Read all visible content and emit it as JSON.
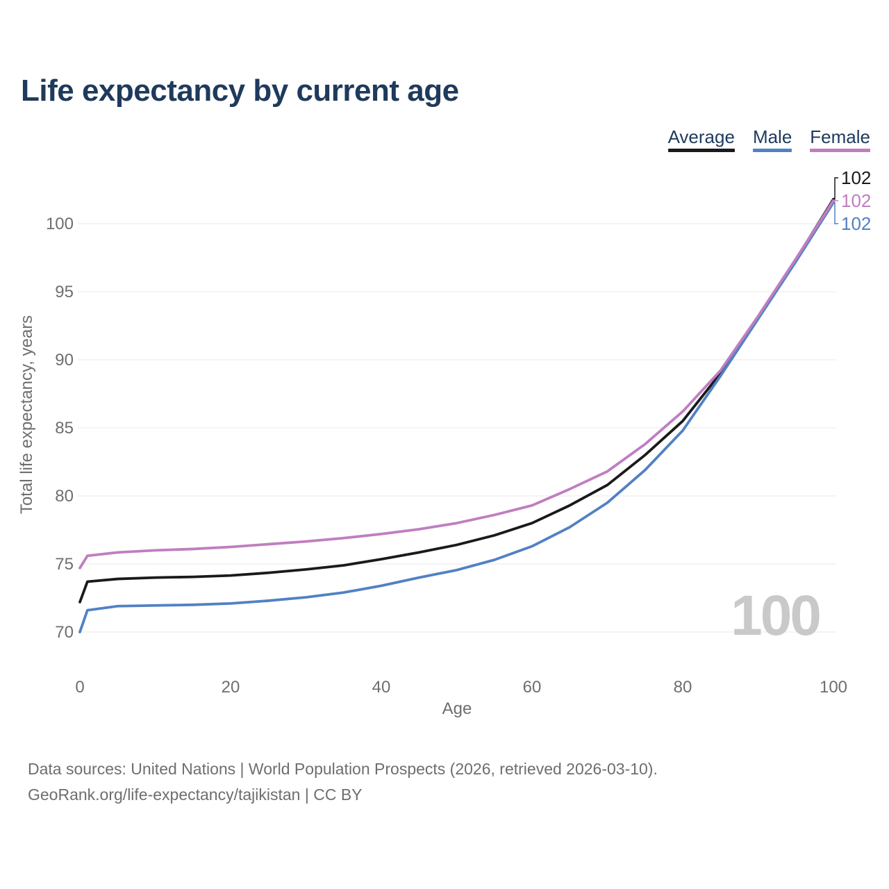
{
  "title": "Life expectancy by current age",
  "legend": {
    "items": [
      {
        "label": "Average",
        "color": "#1a1a1a"
      },
      {
        "label": "Male",
        "color": "#5181c4"
      },
      {
        "label": "Female",
        "color": "#bf7ec0"
      }
    ]
  },
  "watermark": "100",
  "chart_data": {
    "type": "line",
    "title": "Life expectancy by current age",
    "xlabel": "Age",
    "ylabel": "Total life expectancy, years",
    "xlim": [
      0,
      100
    ],
    "ylim": [
      70,
      102
    ],
    "x_ticks": [
      0,
      20,
      40,
      60,
      80,
      100
    ],
    "y_ticks": [
      70,
      75,
      80,
      85,
      90,
      95,
      100
    ],
    "grid": "horizontal",
    "legend_position": "top-right",
    "x": [
      0,
      1,
      5,
      10,
      15,
      20,
      25,
      30,
      35,
      40,
      45,
      50,
      55,
      60,
      65,
      70,
      75,
      80,
      85,
      90,
      95,
      100
    ],
    "series": [
      {
        "name": "Average",
        "color": "#1a1a1a",
        "end_label": "102",
        "values": [
          72.2,
          73.7,
          73.9,
          74.0,
          74.05,
          74.15,
          74.35,
          74.6,
          74.9,
          75.35,
          75.85,
          76.4,
          77.1,
          78.0,
          79.3,
          80.8,
          83.0,
          85.5,
          89.0,
          93.1,
          97.35,
          101.8
        ]
      },
      {
        "name": "Male",
        "color": "#5181c4",
        "end_label": "102",
        "values": [
          70.0,
          71.6,
          71.9,
          71.95,
          72.0,
          72.1,
          72.3,
          72.55,
          72.9,
          73.4,
          74.0,
          74.55,
          75.3,
          76.3,
          77.7,
          79.5,
          81.9,
          84.8,
          88.8,
          93.0,
          97.2,
          101.55
        ]
      },
      {
        "name": "Female",
        "color": "#bf7ec0",
        "end_label": "102",
        "values": [
          74.7,
          75.6,
          75.85,
          76.0,
          76.1,
          76.25,
          76.45,
          76.65,
          76.9,
          77.2,
          77.55,
          78.0,
          78.6,
          79.3,
          80.5,
          81.8,
          83.8,
          86.2,
          89.2,
          93.2,
          97.4,
          101.7
        ]
      }
    ]
  },
  "footer": {
    "line1": "Data sources: United Nations | World Population Prospects (2026, retrieved 2026-03-10).",
    "line2": "GeoRank.org/life-expectancy/tajikistan | CC BY"
  }
}
